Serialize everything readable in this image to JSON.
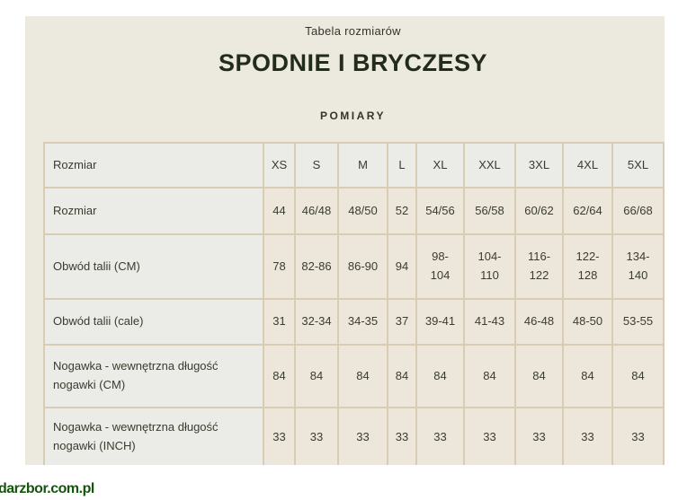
{
  "page": {
    "subtitle": "Tabela rozmiarów",
    "title": "SPODNIE I BRYCZESY",
    "section_heading": "POMIARY",
    "watermark": "darzbor.com.pl"
  },
  "colors": {
    "panel_background": "#ECE9DF",
    "header_cell_background": "#EBEBE7",
    "value_cell_background": "#ECE7DA",
    "table_border": "#D8CDB4",
    "body_text": "#3B3B30",
    "title_text": "#232B1A",
    "watermark_green": "#15540D"
  },
  "table": {
    "columns": [
      "Rozmiar",
      "XS",
      "S",
      "M",
      "L",
      "XL",
      "XXL",
      "3XL",
      "4XL",
      "5XL"
    ],
    "rows": [
      {
        "label": "Rozmiar",
        "values": [
          "44",
          "46/48",
          "48/50",
          "52",
          "54/56",
          "56/58",
          "60/62",
          "62/64",
          "66/68"
        ]
      },
      {
        "label": "Obwód talii (CM)",
        "values": [
          "78",
          "82-86",
          "86-90",
          "94",
          "98-104",
          "104-110",
          "116-122",
          "122-128",
          "134-140"
        ]
      },
      {
        "label": "Obwód talii (cale)",
        "values": [
          "31",
          "32-34",
          "34-35",
          "37",
          "39-41",
          "41-43",
          "46-48",
          "48-50",
          "53-55"
        ]
      },
      {
        "label": "Nogawka - wewnętrzna długość nogawki (CM)",
        "values": [
          "84",
          "84",
          "84",
          "84",
          "84",
          "84",
          "84",
          "84",
          "84"
        ]
      },
      {
        "label": "Nogawka - wewnętrzna długość nogawki (INCH)",
        "values": [
          "33",
          "33",
          "33",
          "33",
          "33",
          "33",
          "33",
          "33",
          "33"
        ]
      }
    ]
  }
}
